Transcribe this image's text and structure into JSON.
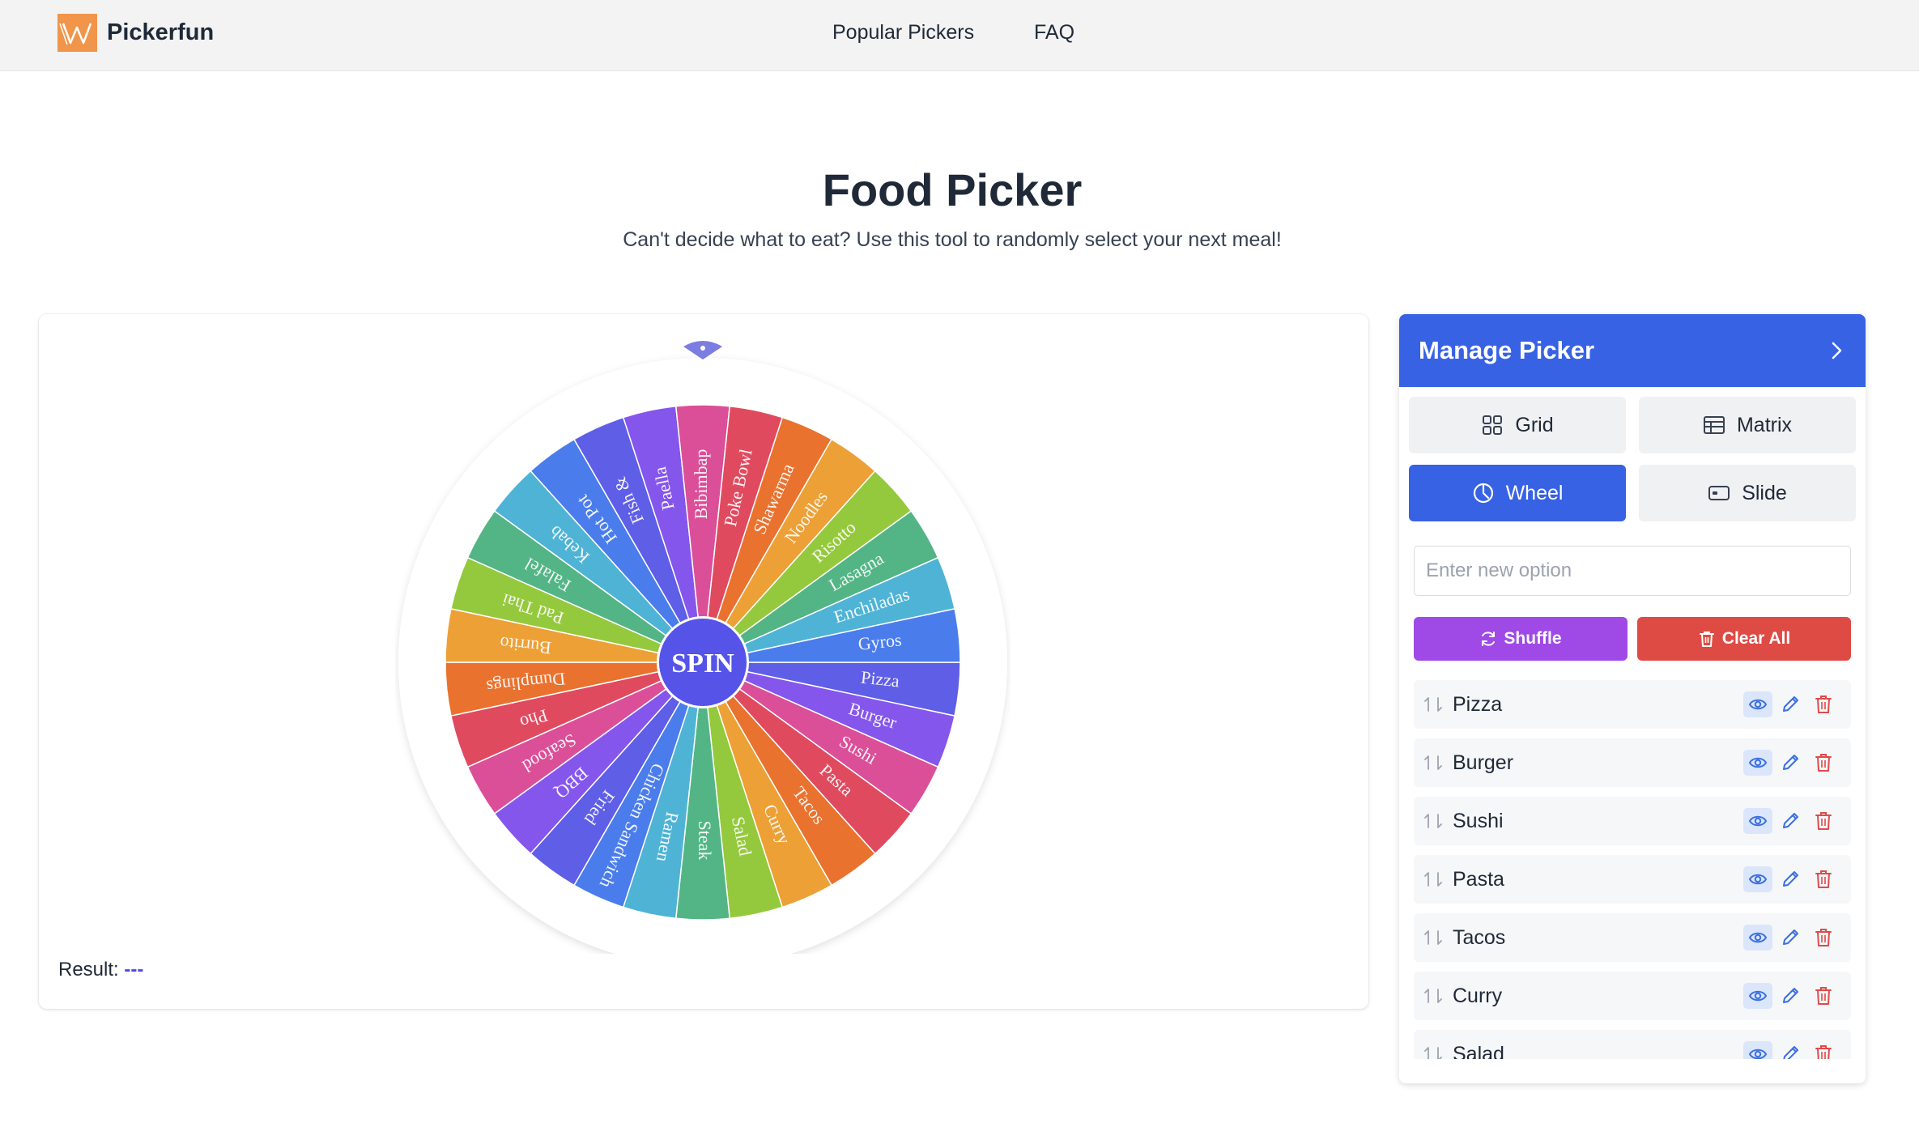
{
  "brand": {
    "name": "Pickerfun"
  },
  "nav": {
    "items": [
      "Popular Pickers",
      "FAQ"
    ]
  },
  "hero": {
    "title": "Food Picker",
    "subtitle": "Can't decide what to eat? Use this tool to randomly select your next meal!"
  },
  "wheel": {
    "spin_label": "SPIN",
    "segments": [
      "Pizza",
      "Burger",
      "Sushi",
      "Pasta",
      "Tacos",
      "Curry",
      "Salad",
      "Steak",
      "Ramen",
      "Chicken Sandwich",
      "Fried",
      "BBQ",
      "Seafood",
      "Pho",
      "Dumplings",
      "Burrito",
      "Pad Thai",
      "Falafel",
      "Kebab",
      "Hot Pot",
      "Fish &",
      "Paella",
      "Bibimbap",
      "Poke Bowl",
      "Shawarma",
      "Noodles",
      "Risotto",
      "Lasagna",
      "Enchiladas",
      "Gyros"
    ],
    "colors": [
      "#5f5ee6",
      "#8556ec",
      "#db4f98",
      "#e04a5f",
      "#e9722e",
      "#eca036",
      "#95c93d",
      "#53b585",
      "#4fb3d6",
      "#4a7deb",
      "#5f5ee6",
      "#8556ec",
      "#db4f98",
      "#e04a5f",
      "#e9722e",
      "#eca036",
      "#95c93d",
      "#53b585",
      "#4fb3d6",
      "#4a7deb",
      "#5f5ee6",
      "#8556ec",
      "#db4f98",
      "#e04a5f",
      "#e9722e",
      "#eca036",
      "#95c93d",
      "#53b585",
      "#4fb3d6",
      "#4a7deb"
    ]
  },
  "result": {
    "label": "Result:",
    "value": "---"
  },
  "panel": {
    "title": "Manage Picker",
    "modes": [
      {
        "label": "Grid",
        "icon": "grid-icon"
      },
      {
        "label": "Matrix",
        "icon": "table-icon"
      },
      {
        "label": "Wheel",
        "icon": "clock-pie-icon",
        "active": true
      },
      {
        "label": "Slide",
        "icon": "slide-icon"
      }
    ],
    "input_placeholder": "Enter new option",
    "shuffle_label": "Shuffle",
    "clear_label": "Clear All",
    "shuffle_color": "#9f4ae6",
    "clear_color": "#de4b44",
    "accent": "#3862e4",
    "items": [
      "Pizza",
      "Burger",
      "Sushi",
      "Pasta",
      "Tacos",
      "Curry",
      "Salad"
    ]
  }
}
